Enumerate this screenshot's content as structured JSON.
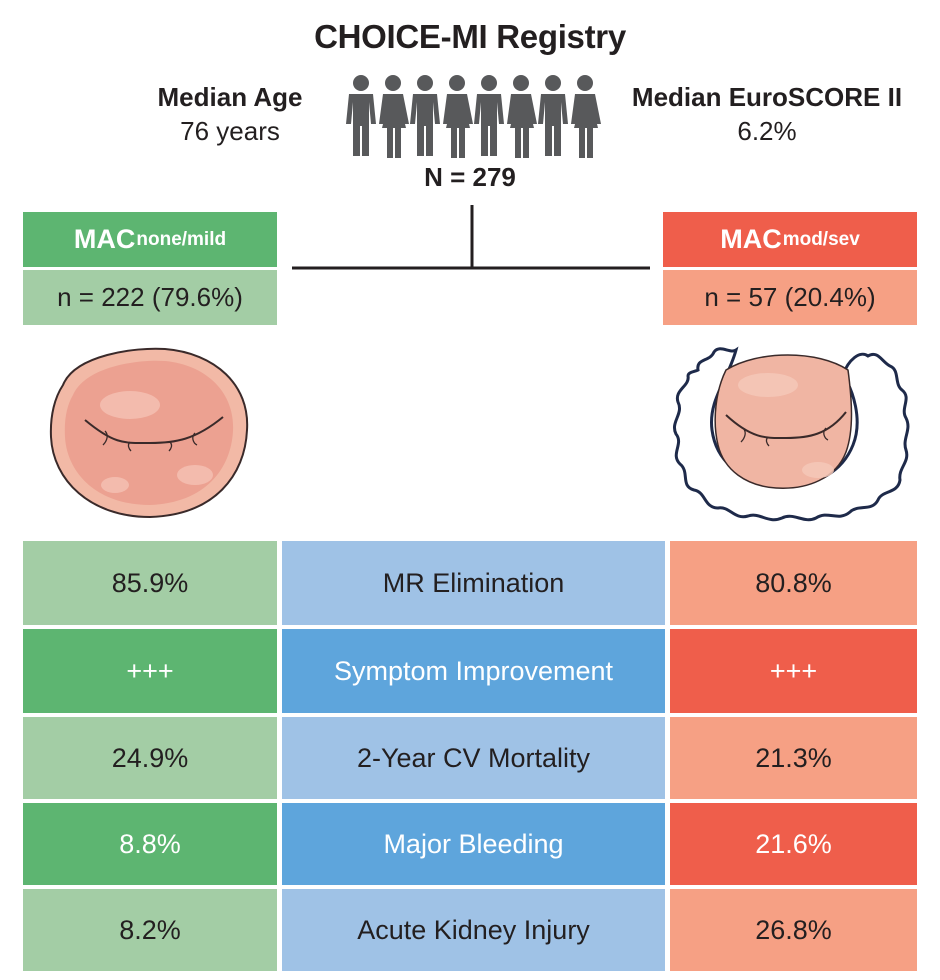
{
  "title": "CHOICE-MI Registry",
  "median_age": {
    "label": "Median Age",
    "value": "76 years"
  },
  "median_euroscore": {
    "label": "Median EuroSCORE II",
    "value": "6.2%"
  },
  "total_n": "N = 279",
  "groups": {
    "left": {
      "name_main": "MAC",
      "name_sub": "none/mild",
      "n": "n = 222 (79.6%)"
    },
    "right": {
      "name_main": "MAC",
      "name_sub": "mod/sev",
      "n": "n = 57 (20.4%)"
    }
  },
  "outcomes": [
    {
      "label": "MR Elimination",
      "left": "85.9%",
      "right": "80.8%"
    },
    {
      "label": "Symptom Improvement",
      "left": "+++",
      "right": "+++"
    },
    {
      "label": "2-Year CV Mortality",
      "left": "24.9%",
      "right": "21.3%"
    },
    {
      "label": "Major Bleeding",
      "left": "8.8%",
      "right": "21.6%"
    },
    {
      "label": "Acute Kidney Injury",
      "left": "8.2%",
      "right": "26.8%"
    }
  ],
  "icons": [
    "people-group-icon",
    "mitral-valve-icon",
    "calcified-mitral-valve-icon"
  ],
  "colors": {
    "green_dark": "#5db571",
    "green_light": "#a3cda5",
    "blue_dark": "#5ea5dc",
    "blue_light": "#9fc2e6",
    "red_dark": "#ef5e4b",
    "red_light": "#f6a084"
  }
}
